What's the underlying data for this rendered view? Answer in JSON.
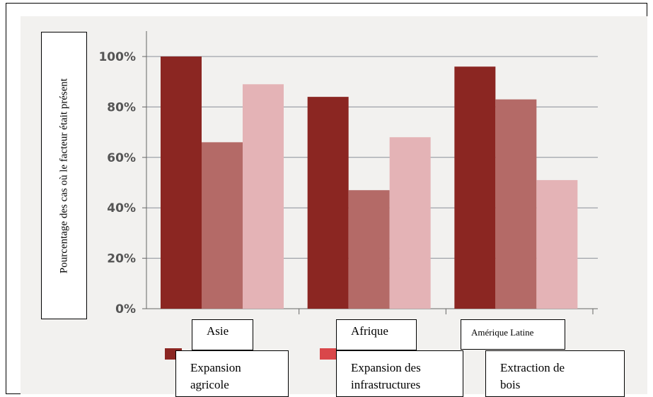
{
  "chart_data": {
    "type": "bar",
    "ylabel": "Pourcentage des cas où le facteur était présent",
    "ylim": [
      0,
      100
    ],
    "yticks": [
      "0%",
      "20%",
      "40%",
      "60%",
      "80%",
      "100%"
    ],
    "categories": [
      "Asie",
      "Afrique",
      "Amérique Latine"
    ],
    "series": [
      {
        "name": "Expansion agricole",
        "values": [
          100,
          84,
          96
        ],
        "color": "#8b2622"
      },
      {
        "name": "Expansion des infrastructures",
        "values": [
          66,
          47,
          83
        ],
        "color": "#b46a67"
      },
      {
        "name": "Extraction de bois",
        "values": [
          89,
          68,
          51
        ],
        "color": "#e4b3b6"
      }
    ],
    "legend_position": "bottom",
    "grid": "horizontal"
  },
  "legend": {
    "items": [
      {
        "label_line1": "Expansion",
        "label_line2": "agricole"
      },
      {
        "label_line1": "Expansion des",
        "label_line2": "infrastructures"
      },
      {
        "label_line1": "Extraction de",
        "label_line2": "bois"
      }
    ]
  }
}
